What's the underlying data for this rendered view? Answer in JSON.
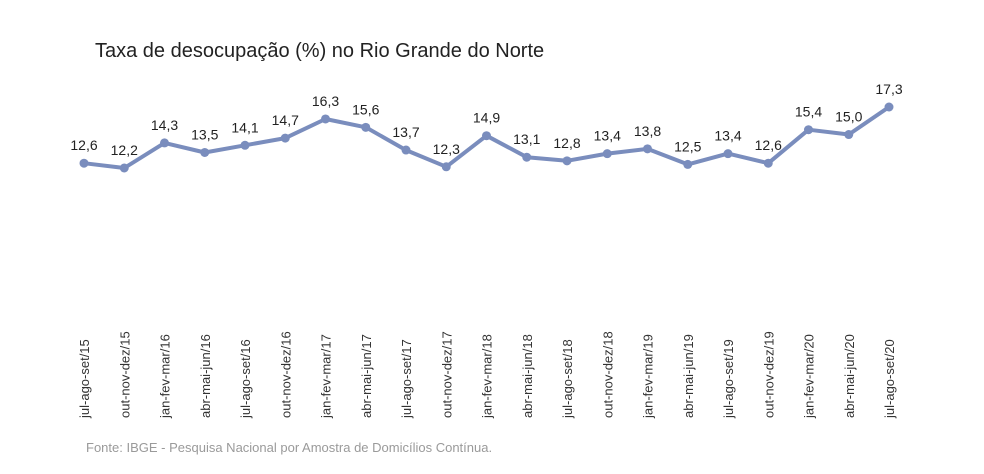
{
  "chart_data": {
    "type": "line",
    "title": "Taxa de desocupação (%) no Rio Grande do Norte",
    "source": "Fonte: IBGE - Pesquisa Nacional por Amostra de Domicílios Contínua.",
    "categories": [
      "jul-ago-set/15",
      "out-nov-dez/15",
      "jan-fev-mar/16",
      "abr-mai-jun/16",
      "jul-ago-set/16",
      "out-nov-dez/16",
      "jan-fev-mar/17",
      "abr-mai-jun/17",
      "jul-ago-set/17",
      "out-nov-dez/17",
      "jan-fev-mar/18",
      "abr-mai-jun/18",
      "jul-ago-set/18",
      "out-nov-dez/18",
      "jan-fev-mar/19",
      "abr-mai-jun/19",
      "jul-ago-set/19",
      "out-nov-dez/19",
      "jan-fev-mar/20",
      "abr-mai-jun/20",
      "jul-ago-set/20"
    ],
    "values": [
      12.6,
      12.2,
      14.3,
      13.5,
      14.1,
      14.7,
      16.3,
      15.6,
      13.7,
      12.3,
      14.9,
      13.1,
      12.8,
      13.4,
      13.8,
      12.5,
      13.4,
      12.6,
      15.4,
      15.0,
      17.3
    ],
    "value_labels": [
      "12,6",
      "12,2",
      "14,3",
      "13,5",
      "14,1",
      "14,7",
      "16,3",
      "15,6",
      "13,7",
      "12,3",
      "14,9",
      "13,1",
      "12,8",
      "13,4",
      "13,8",
      "12,5",
      "13,4",
      "12,6",
      "15,4",
      "15,0",
      "17,3"
    ],
    "line_color": "#7a8dbd",
    "grid": false,
    "legend": "none"
  }
}
